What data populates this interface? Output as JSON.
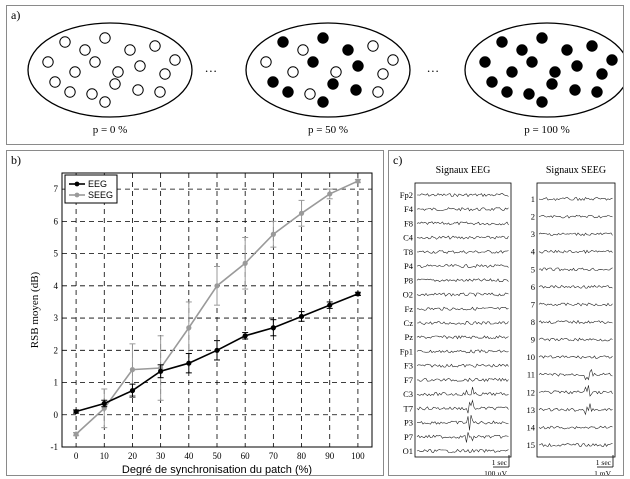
{
  "panel_a": {
    "label": "a)",
    "ellipses": [
      {
        "caption": "p = 0 %",
        "pattern": [
          0,
          0,
          0,
          0,
          0,
          0,
          0,
          0,
          0,
          0,
          0,
          0,
          0,
          0,
          0,
          0,
          0,
          0,
          0
        ]
      },
      {
        "caption": "p = 50 %",
        "pattern": [
          0,
          1,
          0,
          1,
          1,
          0,
          1,
          0,
          1,
          0,
          1,
          0,
          1,
          0,
          1,
          1,
          0,
          1,
          0
        ]
      },
      {
        "caption": "p = 100 %",
        "pattern": [
          1,
          1,
          1,
          1,
          1,
          1,
          1,
          1,
          1,
          1,
          1,
          1,
          1,
          1,
          1,
          1,
          1,
          1,
          1
        ]
      }
    ],
    "ellipsis": "..."
  },
  "panel_b": {
    "label": "b)"
  },
  "panel_c": {
    "label": "c)",
    "eeg": {
      "title": "Signaux EEG",
      "channels": [
        "Fp2",
        "F4",
        "F8",
        "C4",
        "T8",
        "P4",
        "P8",
        "O2",
        "Fz",
        "Cz",
        "Pz",
        "Fp1",
        "F3",
        "F7",
        "C3",
        "T7",
        "P3",
        "P7",
        "O1"
      ],
      "scale_time": "1 sec",
      "scale_amp": "100 µV"
    },
    "seeg": {
      "title": "Signaux SEEG",
      "channels": [
        "1",
        "2",
        "3",
        "4",
        "5",
        "6",
        "7",
        "8",
        "9",
        "10",
        "11",
        "12",
        "13",
        "14",
        "15"
      ],
      "scale_time": "1 sec",
      "scale_amp": "1 mV"
    }
  },
  "chart_data": {
    "type": "line",
    "xlabel": "Degré de synchronisation du patch (%)",
    "ylabel": "RSB moyen (dB)",
    "x": [
      0,
      10,
      20,
      30,
      40,
      50,
      60,
      70,
      80,
      90,
      100
    ],
    "xlim": [
      -5,
      105
    ],
    "ylim": [
      -1,
      7.5
    ],
    "yticks": [
      -1,
      0,
      1,
      2,
      3,
      4,
      5,
      6,
      7
    ],
    "grid": true,
    "legend": "top-left",
    "series": [
      {
        "name": "EEG",
        "color": "#000000",
        "values": [
          0.1,
          0.35,
          0.75,
          1.35,
          1.6,
          2.0,
          2.45,
          2.7,
          3.05,
          3.4,
          3.75
        ],
        "errors": [
          0.05,
          0.1,
          0.2,
          0.2,
          0.3,
          0.3,
          0.1,
          0.25,
          0.15,
          0.1,
          0.05
        ]
      },
      {
        "name": "SEEG",
        "color": "#9a9a9a",
        "values": [
          -0.6,
          0.2,
          1.4,
          1.45,
          2.7,
          4.0,
          4.7,
          5.6,
          6.25,
          6.85,
          7.25
        ],
        "errors": [
          0.05,
          0.6,
          0.8,
          1.0,
          0.8,
          0.6,
          0.8,
          0.4,
          0.4,
          0.15,
          0.05
        ]
      }
    ]
  }
}
